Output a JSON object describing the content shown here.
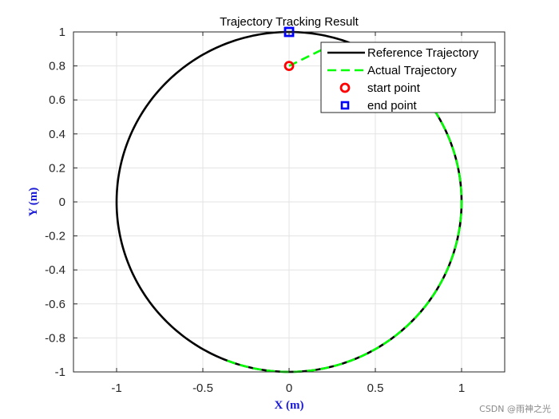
{
  "chart_data": {
    "type": "line",
    "title": "Trajectory Tracking Result",
    "xlabel": "X (m)",
    "ylabel": "Y (m)",
    "xlim": [
      -1.25,
      1.25
    ],
    "ylim": [
      -1,
      1
    ],
    "xticks": [
      -1,
      -0.5,
      0,
      0.5,
      1
    ],
    "xtick_labels": [
      "-1",
      "-0.5",
      "0",
      "0.5",
      "1"
    ],
    "yticks": [
      -1,
      -0.8,
      -0.6,
      -0.4,
      -0.2,
      0,
      0.2,
      0.4,
      0.6,
      0.8,
      1
    ],
    "ytick_labels": [
      "-1",
      "-0.8",
      "-0.6",
      "-0.4",
      "-0.2",
      "0",
      "0.2",
      "0.4",
      "0.6",
      "0.8",
      "1"
    ],
    "grid": true,
    "legend_position": "top-right",
    "label_color": "#1a1ad6",
    "series": [
      {
        "name": "Reference Trajectory",
        "style": "solid",
        "color": "#000000",
        "shape": "circle",
        "center": [
          0,
          0
        ],
        "radius": 1
      },
      {
        "name": "Actual Trajectory",
        "style": "dashed",
        "color": "#00ff00",
        "start": [
          0,
          0.8
        ],
        "transition_points": [
          [
            0,
            0.8
          ],
          [
            0.12,
            0.86
          ],
          [
            0.26,
            0.93
          ],
          [
            0.36,
            0.935
          ]
        ],
        "merges_at_angle_deg": 69,
        "center": [
          0,
          0
        ],
        "radius": 1
      },
      {
        "name": "start point",
        "marker": "circle",
        "color": "#ff0000",
        "x": [
          0
        ],
        "y": [
          0.8
        ]
      },
      {
        "name": "end point",
        "marker": "square",
        "color": "#0000ff",
        "x": [
          0
        ],
        "y": [
          1
        ]
      }
    ]
  },
  "watermark": "CSDN @雨神之光"
}
